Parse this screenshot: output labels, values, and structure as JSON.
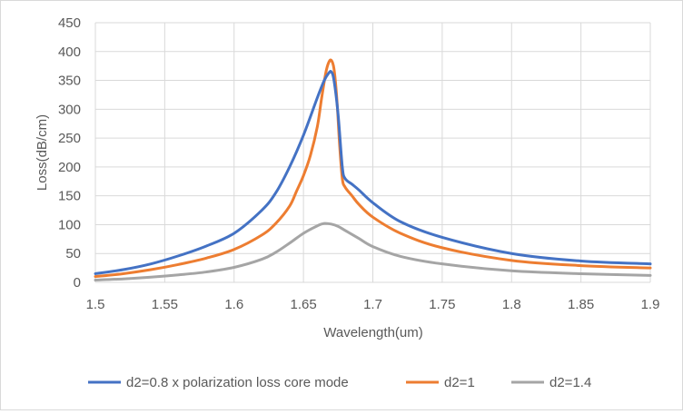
{
  "chart_data": {
    "type": "line",
    "xlabel": "Wavelength(um)",
    "ylabel": "Loss(dB/cm)",
    "xlim": [
      1.5,
      1.9
    ],
    "ylim": [
      0,
      450
    ],
    "xticks": [
      1.5,
      1.55,
      1.6,
      1.65,
      1.7,
      1.75,
      1.8,
      1.85,
      1.9
    ],
    "xtick_labels": [
      "1.5",
      "1.55",
      "1.6",
      "1.65",
      "1.7",
      "1.75",
      "1.8",
      "1.85",
      "1.9"
    ],
    "yticks": [
      0,
      50,
      100,
      150,
      200,
      250,
      300,
      350,
      400,
      450
    ],
    "ytick_labels": [
      "0",
      "50",
      "100",
      "150",
      "200",
      "250",
      "300",
      "350",
      "400",
      "450"
    ],
    "grid": true,
    "legend_position": "bottom",
    "series": [
      {
        "name": "d2=0.8 x polarization loss core mode",
        "color": "#4472c4",
        "x": [
          1.5,
          1.52,
          1.54,
          1.56,
          1.58,
          1.6,
          1.62,
          1.63,
          1.64,
          1.65,
          1.66,
          1.665,
          1.668,
          1.67,
          1.672,
          1.675,
          1.678,
          1.68,
          1.685,
          1.69,
          1.7,
          1.72,
          1.75,
          1.8,
          1.85,
          1.9
        ],
        "y": [
          15,
          22,
          32,
          46,
          63,
          85,
          125,
          155,
          200,
          255,
          320,
          350,
          362,
          365,
          350,
          290,
          200,
          180,
          170,
          160,
          138,
          105,
          78,
          50,
          37,
          32
        ]
      },
      {
        "name": "d2=1",
        "color": "#ed7d31",
        "x": [
          1.5,
          1.52,
          1.54,
          1.56,
          1.58,
          1.6,
          1.62,
          1.63,
          1.64,
          1.645,
          1.65,
          1.655,
          1.66,
          1.663,
          1.666,
          1.668,
          1.67,
          1.672,
          1.674,
          1.676,
          1.678,
          1.68,
          1.685,
          1.69,
          1.7,
          1.72,
          1.75,
          1.8,
          1.85,
          1.9
        ],
        "y": [
          10,
          15,
          22,
          31,
          42,
          57,
          82,
          102,
          132,
          158,
          185,
          220,
          270,
          318,
          362,
          380,
          385,
          370,
          320,
          240,
          180,
          165,
          150,
          135,
          113,
          85,
          60,
          38,
          29,
          25
        ]
      },
      {
        "name": "d2=1.4",
        "color": "#a5a5a5",
        "x": [
          1.5,
          1.52,
          1.54,
          1.56,
          1.58,
          1.6,
          1.62,
          1.63,
          1.64,
          1.65,
          1.66,
          1.665,
          1.67,
          1.675,
          1.68,
          1.69,
          1.7,
          1.72,
          1.75,
          1.8,
          1.85,
          1.9
        ],
        "y": [
          4,
          6,
          9,
          13,
          18,
          26,
          40,
          52,
          68,
          85,
          98,
          102,
          101,
          97,
          90,
          76,
          62,
          45,
          32,
          20,
          15,
          12
        ]
      }
    ]
  }
}
